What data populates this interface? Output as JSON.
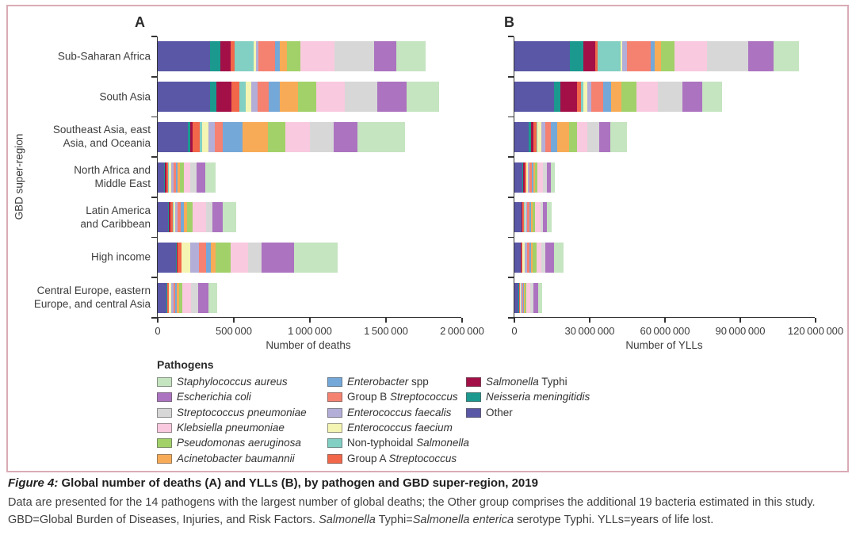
{
  "figure": {
    "panel_a_label": "A",
    "panel_b_label": "B"
  },
  "axes": {
    "ylabel": "GBD super-region",
    "a": {
      "xlabel": "Number of deaths"
    },
    "b": {
      "xlabel": "Number of YLLs"
    }
  },
  "regions_display": [
    [
      "Sub-Saharan Africa"
    ],
    [
      "South Asia"
    ],
    [
      "Southeast Asia, east",
      "Asia, and Oceania"
    ],
    [
      "North Africa and",
      "Middle East"
    ],
    [
      "Latin America",
      "and Caribbean"
    ],
    [
      "High income"
    ],
    [
      "Central Europe, eastern",
      "Europe, and central Asia"
    ]
  ],
  "legend": {
    "title": "Pathogens",
    "columns": [
      [
        {
          "color": "#c5e4c0",
          "parts": [
            {
              "t": "Staphylococcus aureus",
              "i": true
            }
          ]
        },
        {
          "color": "#ac73c0",
          "parts": [
            {
              "t": "Escherichia coli",
              "i": true
            }
          ]
        },
        {
          "color": "#d7d7d7",
          "parts": [
            {
              "t": "Streptococcus pneumoniae",
              "i": true
            }
          ]
        },
        {
          "color": "#f9c9df",
          "parts": [
            {
              "t": "Klebsiella pneumoniae",
              "i": true
            }
          ]
        },
        {
          "color": "#a2d16a",
          "parts": [
            {
              "t": "Pseudomonas aeruginosa",
              "i": true
            }
          ]
        },
        {
          "color": "#f8ab57",
          "parts": [
            {
              "t": "Acinetobacter baumannii",
              "i": true
            }
          ]
        }
      ],
      [
        {
          "color": "#74a8d8",
          "parts": [
            {
              "t": "Enterobacter",
              "i": true
            },
            {
              "t": " spp",
              "i": false
            }
          ]
        },
        {
          "color": "#f58171",
          "parts": [
            {
              "t": "Group B ",
              "i": false
            },
            {
              "t": "Streptococcus",
              "i": true
            }
          ]
        },
        {
          "color": "#b3aed8",
          "parts": [
            {
              "t": "Enterococcus faecalis",
              "i": true
            }
          ]
        },
        {
          "color": "#f4f4b3",
          "parts": [
            {
              "t": "Enterococcus faecium",
              "i": true
            }
          ]
        },
        {
          "color": "#82cfc3",
          "parts": [
            {
              "t": "Non-typhoidal ",
              "i": false
            },
            {
              "t": "Salmonella",
              "i": true
            }
          ]
        },
        {
          "color": "#f26649",
          "parts": [
            {
              "t": "Group A ",
              "i": false
            },
            {
              "t": "Streptococcus",
              "i": true
            }
          ]
        }
      ],
      [
        {
          "color": "#a31048",
          "parts": [
            {
              "t": "Salmonella",
              "i": true
            },
            {
              "t": " Typhi",
              "i": false
            }
          ]
        },
        {
          "color": "#1b998f",
          "parts": [
            {
              "t": "Neisseria meningitidis",
              "i": true
            }
          ]
        },
        {
          "color": "#5a57a6",
          "parts": [
            {
              "t": "Other",
              "i": false
            }
          ]
        }
      ]
    ]
  },
  "caption": {
    "title_parts": [
      {
        "t": "Figure 4:",
        "i": true,
        "b": true
      },
      {
        "t": " Global number of deaths (A) and YLLs (B), by pathogen and GBD super-region, 2019",
        "i": false,
        "b": true
      }
    ],
    "line2": "Data are presented for the 14 pathogens with the largest number of global deaths; the Other group comprises the additional 19 bacteria estimated in this study.",
    "line3_parts": [
      {
        "t": "GBD=Global Burden of Diseases, Injuries, and Risk Factors. ",
        "i": false
      },
      {
        "t": "Salmonella",
        "i": true
      },
      {
        "t": " Typhi=",
        "i": false
      },
      {
        "t": "Salmonella enterica",
        "i": true
      },
      {
        "t": " serotype Typhi. YLLs=years of life lost.",
        "i": false
      }
    ]
  },
  "colors": {
    "figure_border": "#d9abb6",
    "axis": "#333333",
    "text": "#3d3d3d"
  },
  "chart_data": [
    {
      "type": "bar",
      "orientation": "horizontal-stacked",
      "title": "A",
      "xlabel": "Number of deaths",
      "ylabel": "GBD super-region",
      "xlim": [
        0,
        2000000
      ],
      "x_tick_labels": [
        "0",
        "500 000",
        "1 000 000",
        "1 500 000",
        "2 000 000"
      ],
      "grid": false,
      "legend_position": "bottom",
      "categories": [
        "Sub-Saharan Africa",
        "South Asia",
        "Southeast Asia, east Asia, and Oceania",
        "North Africa and Middle East",
        "Latin America and Caribbean",
        "High income",
        "Central Europe, eastern Europe, and central Asia"
      ],
      "series": [
        {
          "name": "Other",
          "color": "#5a57a6",
          "values": [
            345000,
            345000,
            200000,
            43000,
            69000,
            121000,
            57000
          ]
        },
        {
          "name": "Neisseria meningitidis",
          "color": "#1b998f",
          "values": [
            69000,
            38000,
            14000,
            5000,
            5000,
            5000,
            3000
          ]
        },
        {
          "name": "Salmonella Typhi",
          "color": "#a31048",
          "values": [
            66000,
            100000,
            16000,
            9000,
            8000,
            3000,
            2000
          ]
        },
        {
          "name": "Group A Streptococcus",
          "color": "#f26649",
          "values": [
            24000,
            56000,
            45000,
            12000,
            16000,
            26000,
            10000
          ]
        },
        {
          "name": "Non-typhoidal Salmonella",
          "color": "#82cfc3",
          "values": [
            127000,
            38000,
            16000,
            4000,
            8000,
            3000,
            2000
          ]
        },
        {
          "name": "Enterococcus faecium",
          "color": "#f4f4b3",
          "values": [
            17000,
            40000,
            43000,
            14000,
            10000,
            56000,
            13000
          ]
        },
        {
          "name": "Enterococcus faecalis",
          "color": "#b3aed8",
          "values": [
            12000,
            40000,
            43000,
            17000,
            16000,
            57000,
            16000
          ]
        },
        {
          "name": "Group B Streptococcus",
          "color": "#f58171",
          "values": [
            113000,
            73000,
            52000,
            14000,
            21000,
            47000,
            10000
          ]
        },
        {
          "name": "Enterobacter spp",
          "color": "#74a8d8",
          "values": [
            31000,
            73000,
            130000,
            12000,
            21000,
            31000,
            13000
          ]
        },
        {
          "name": "Acinetobacter baumannii",
          "color": "#f8ab57",
          "values": [
            43000,
            121000,
            165000,
            14000,
            21000,
            31000,
            16000
          ]
        },
        {
          "name": "Pseudomonas aeruginosa",
          "color": "#a2d16a",
          "values": [
            90000,
            118000,
            113000,
            26000,
            36000,
            99000,
            21000
          ]
        },
        {
          "name": "Klebsiella pneumoniae",
          "color": "#f9c9df",
          "values": [
            226000,
            188000,
            165000,
            42000,
            87000,
            113000,
            57000
          ]
        },
        {
          "name": "Streptococcus pneumoniae",
          "color": "#d7d7d7",
          "values": [
            260000,
            212000,
            156000,
            43000,
            40000,
            90000,
            47000
          ]
        },
        {
          "name": "Escherichia coli",
          "color": "#ac73c0",
          "values": [
            147000,
            194000,
            156000,
            57000,
            69000,
            213000,
            66000
          ]
        },
        {
          "name": "Staphylococcus aureus",
          "color": "#c5e4c0",
          "values": [
            191000,
            214000,
            312000,
            66000,
            90000,
            286000,
            57000
          ]
        }
      ]
    },
    {
      "type": "bar",
      "orientation": "horizontal-stacked",
      "title": "B",
      "xlabel": "Number of YLLs",
      "xlim": [
        0,
        120000000
      ],
      "x_tick_labels": [
        "0",
        "30 000 000",
        "60 000 000",
        "90 000 000",
        "120 000 000"
      ],
      "grid": false,
      "categories": [
        "Sub-Saharan Africa",
        "South Asia",
        "Southeast Asia, east Asia, and Oceania",
        "North Africa and Middle East",
        "Latin America and Caribbean",
        "High income",
        "Central Europe, eastern Europe, and central Asia"
      ],
      "series": [
        {
          "name": "Other",
          "color": "#5a57a6",
          "values": [
            22200000,
            15800000,
            5800000,
            3200000,
            2800000,
            2500000,
            1700000
          ]
        },
        {
          "name": "Neisseria meningitidis",
          "color": "#1b998f",
          "values": [
            5300000,
            2600000,
            700000,
            300000,
            200000,
            100000,
            100000
          ]
        },
        {
          "name": "Salmonella Typhi",
          "color": "#a31048",
          "values": [
            4700000,
            6600000,
            1000000,
            500000,
            300000,
            100000,
            50000
          ]
        },
        {
          "name": "Group A Streptococcus",
          "color": "#f26649",
          "values": [
            1000000,
            1500000,
            1400000,
            600000,
            500000,
            500000,
            300000
          ]
        },
        {
          "name": "Non-typhoidal Salmonella",
          "color": "#82cfc3",
          "values": [
            9000000,
            1000000,
            300000,
            300000,
            300000,
            100000,
            100000
          ]
        },
        {
          "name": "Enterococcus faecium",
          "color": "#f4f4b3",
          "values": [
            900000,
            1600000,
            1600000,
            500000,
            400000,
            900000,
            350000
          ]
        },
        {
          "name": "Enterococcus faecalis",
          "color": "#b3aed8",
          "values": [
            1600000,
            1600000,
            1600000,
            600000,
            500000,
            1000000,
            450000
          ]
        },
        {
          "name": "Group B Streptococcus",
          "color": "#f58171",
          "values": [
            9500000,
            4700000,
            2100000,
            900000,
            900000,
            800000,
            300000
          ]
        },
        {
          "name": "Enterobacter spp",
          "color": "#74a8d8",
          "values": [
            1600000,
            3200000,
            2600000,
            600000,
            700000,
            600000,
            400000
          ]
        },
        {
          "name": "Acinetobacter baumannii",
          "color": "#f8ab57",
          "values": [
            2600000,
            4200000,
            4700000,
            700000,
            700000,
            600000,
            500000
          ]
        },
        {
          "name": "Pseudomonas aeruginosa",
          "color": "#a2d16a",
          "values": [
            5300000,
            5800000,
            3200000,
            1000000,
            1000000,
            1600000,
            600000
          ]
        },
        {
          "name": "Klebsiella pneumoniae",
          "color": "#f9c9df",
          "values": [
            13200000,
            8500000,
            4200000,
            2200000,
            2000000,
            1900000,
            1600000
          ]
        },
        {
          "name": "Streptococcus pneumoniae",
          "color": "#d7d7d7",
          "values": [
            16400000,
            10000000,
            4700000,
            1600000,
            1200000,
            1600000,
            1300000
          ]
        },
        {
          "name": "Escherichia coli",
          "color": "#ac73c0",
          "values": [
            10000000,
            7900000,
            4200000,
            1600000,
            1600000,
            3400000,
            1900000
          ]
        },
        {
          "name": "Staphylococcus aureus",
          "color": "#c5e4c0",
          "values": [
            10000000,
            7900000,
            6900000,
            1600000,
            1900000,
            4000000,
            1400000
          ]
        }
      ]
    }
  ]
}
